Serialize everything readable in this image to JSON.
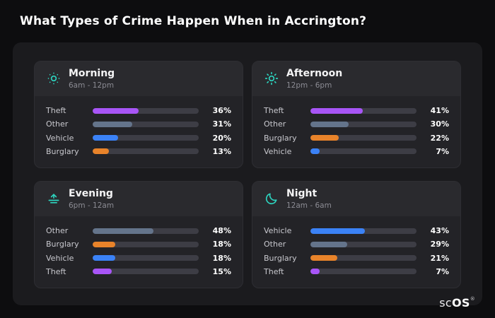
{
  "header": {
    "title": "What Types of Crime Happen When in Accrington?"
  },
  "brand": {
    "prefix": "sc",
    "suffix": "OS",
    "registered": "®"
  },
  "colors": {
    "page_background": "#0d0d0f",
    "panel_background": "#1b1b1e",
    "card_background": "#232327",
    "card_header_background": "#2a2a2e",
    "bar_track": "#3d3d45",
    "icon_accent": "#2dd4bf",
    "theft": "#a855f7",
    "other": "#64748b",
    "vehicle": "#3b82f6",
    "burglary": "#e8832a"
  },
  "chart_data": [
    {
      "type": "bar",
      "title": "Morning",
      "subtitle": "6am - 12pm",
      "icon": "sun-dim-icon",
      "orientation": "horizontal",
      "xlim": [
        0,
        100
      ],
      "categories": [
        "Theft",
        "Other",
        "Vehicle",
        "Burglary"
      ],
      "values": [
        36,
        31,
        20,
        13
      ],
      "value_labels": [
        "36%",
        "31%",
        "20%",
        "13%"
      ],
      "bar_colors": [
        "#a855f7",
        "#64748b",
        "#3b82f6",
        "#e8832a"
      ]
    },
    {
      "type": "bar",
      "title": "Afternoon",
      "subtitle": "12pm - 6pm",
      "icon": "sun-icon",
      "orientation": "horizontal",
      "xlim": [
        0,
        100
      ],
      "categories": [
        "Theft",
        "Other",
        "Burglary",
        "Vehicle"
      ],
      "values": [
        41,
        30,
        22,
        7
      ],
      "value_labels": [
        "41%",
        "30%",
        "22%",
        "7%"
      ],
      "bar_colors": [
        "#a855f7",
        "#64748b",
        "#e8832a",
        "#3b82f6"
      ]
    },
    {
      "type": "bar",
      "title": "Evening",
      "subtitle": "6pm - 12am",
      "icon": "sunset-icon",
      "orientation": "horizontal",
      "xlim": [
        0,
        100
      ],
      "categories": [
        "Other",
        "Burglary",
        "Vehicle",
        "Theft"
      ],
      "values": [
        48,
        18,
        18,
        15
      ],
      "value_labels": [
        "48%",
        "18%",
        "18%",
        "15%"
      ],
      "bar_colors": [
        "#64748b",
        "#e8832a",
        "#3b82f6",
        "#a855f7"
      ]
    },
    {
      "type": "bar",
      "title": "Night",
      "subtitle": "12am - 6am",
      "icon": "moon-icon",
      "orientation": "horizontal",
      "xlim": [
        0,
        100
      ],
      "categories": [
        "Vehicle",
        "Other",
        "Burglary",
        "Theft"
      ],
      "values": [
        43,
        29,
        21,
        7
      ],
      "value_labels": [
        "43%",
        "29%",
        "21%",
        "7%"
      ],
      "bar_colors": [
        "#3b82f6",
        "#64748b",
        "#e8832a",
        "#a855f7"
      ]
    }
  ]
}
